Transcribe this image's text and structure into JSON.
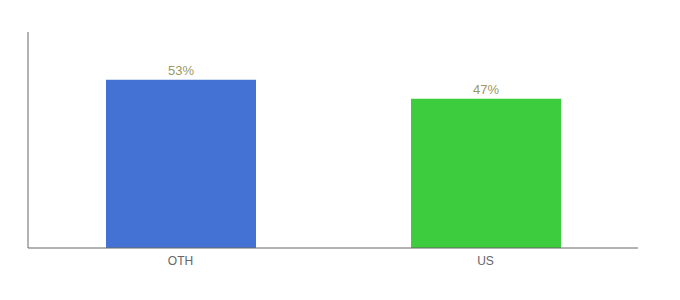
{
  "chart_data": {
    "type": "bar",
    "categories": [
      "OTH",
      "US"
    ],
    "values": [
      53,
      47
    ],
    "value_labels": [
      "53%",
      "47%"
    ],
    "colors": [
      "#4472d4",
      "#3dcc3d"
    ],
    "ylim": [
      0,
      68
    ],
    "data_labels": true,
    "tick_labels": "x"
  }
}
